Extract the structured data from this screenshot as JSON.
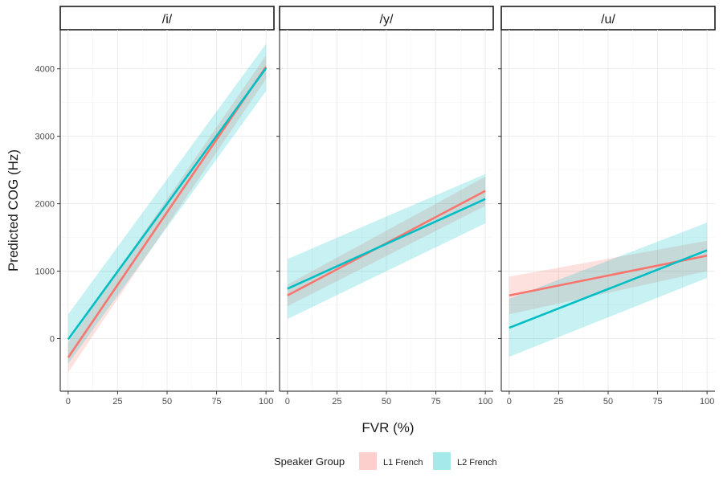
{
  "chart_data": {
    "type": "line",
    "facets": [
      "/i/",
      "/y/",
      "/u/"
    ],
    "xlabel": "FVR (%)",
    "ylabel": "Predicted COG (Hz)",
    "xlim": [
      -4,
      104
    ],
    "ylim": [
      -780,
      4580
    ],
    "x_ticks": [
      0,
      25,
      50,
      75,
      100
    ],
    "y_ticks": [
      0,
      1000,
      2000,
      3000,
      4000
    ],
    "grid": true,
    "legend": {
      "title": "Speaker Group",
      "position": "bottom",
      "entries": [
        "L1 French",
        "L2 French"
      ]
    },
    "colors": {
      "L1 French": "#F8766D",
      "L2 French": "#00BFC4"
    },
    "panels": [
      {
        "facet": "/i/",
        "series": [
          {
            "name": "L1 French",
            "x": [
              0,
              100
            ],
            "y": [
              -280,
              4030
            ],
            "ymin": [
              -500,
              3850
            ],
            "ymax": [
              -60,
              4200
            ]
          },
          {
            "name": "L2 French",
            "x": [
              0,
              100
            ],
            "y": [
              -10,
              4010
            ],
            "ymin": [
              -370,
              3670
            ],
            "ymax": [
              360,
              4370
            ]
          }
        ]
      },
      {
        "facet": "/y/",
        "series": [
          {
            "name": "L1 French",
            "x": [
              0,
              100
            ],
            "y": [
              640,
              2190
            ],
            "ymin": [
              480,
              1970
            ],
            "ymax": [
              800,
              2400
            ]
          },
          {
            "name": "L2 French",
            "x": [
              0,
              100
            ],
            "y": [
              740,
              2070
            ],
            "ymin": [
              290,
              1710
            ],
            "ymax": [
              1180,
              2440
            ]
          }
        ]
      },
      {
        "facet": "/u/",
        "series": [
          {
            "name": "L1 French",
            "x": [
              0,
              100
            ],
            "y": [
              640,
              1230
            ],
            "ymin": [
              360,
              1000
            ],
            "ymax": [
              920,
              1450
            ]
          },
          {
            "name": "L2 French",
            "x": [
              0,
              100
            ],
            "y": [
              160,
              1310
            ],
            "ymin": [
              -270,
              900
            ],
            "ymax": [
              590,
              1720
            ]
          }
        ]
      }
    ]
  }
}
